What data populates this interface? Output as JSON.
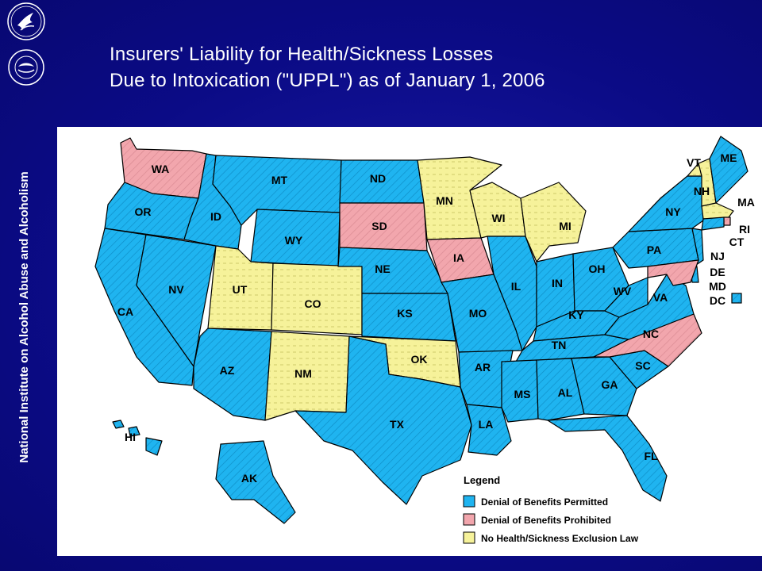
{
  "title": {
    "line1": "Insurers' Liability for Health/Sickness Losses",
    "line2": "Due to Intoxication (\"UPPL\") as of January 1, 2006"
  },
  "sidebar": {
    "org_name": "National Institute on Alcohol Abuse and Alcoholism",
    "logo_top": "hhs-eagle-logo",
    "logo_bottom": "nih-seal-logo"
  },
  "colors": {
    "permitted": "#1fb4f0",
    "prohibited": "#f2a6ad",
    "no_law": "#f6f29a",
    "background": "#0b0b86"
  },
  "legend": {
    "title": "Legend",
    "items": [
      {
        "label": "Denial of Benefits Permitted",
        "status": "permitted"
      },
      {
        "label": "Denial of Benefits Prohibited",
        "status": "prohibited"
      },
      {
        "label": "No Health/Sickness Exclusion Law",
        "status": "no_law"
      }
    ]
  },
  "states": [
    {
      "code": "WA",
      "status": "prohibited"
    },
    {
      "code": "OR",
      "status": "permitted"
    },
    {
      "code": "CA",
      "status": "permitted"
    },
    {
      "code": "NV",
      "status": "permitted"
    },
    {
      "code": "ID",
      "status": "permitted"
    },
    {
      "code": "MT",
      "status": "permitted"
    },
    {
      "code": "WY",
      "status": "permitted"
    },
    {
      "code": "UT",
      "status": "no_law"
    },
    {
      "code": "CO",
      "status": "no_law"
    },
    {
      "code": "AZ",
      "status": "permitted"
    },
    {
      "code": "NM",
      "status": "no_law"
    },
    {
      "code": "ND",
      "status": "permitted"
    },
    {
      "code": "SD",
      "status": "prohibited"
    },
    {
      "code": "NE",
      "status": "permitted"
    },
    {
      "code": "KS",
      "status": "permitted"
    },
    {
      "code": "OK",
      "status": "no_law"
    },
    {
      "code": "TX",
      "status": "permitted"
    },
    {
      "code": "MN",
      "status": "no_law"
    },
    {
      "code": "IA",
      "status": "prohibited"
    },
    {
      "code": "MO",
      "status": "permitted"
    },
    {
      "code": "AR",
      "status": "permitted"
    },
    {
      "code": "LA",
      "status": "permitted"
    },
    {
      "code": "WI",
      "status": "no_law"
    },
    {
      "code": "IL",
      "status": "permitted"
    },
    {
      "code": "MI",
      "status": "no_law"
    },
    {
      "code": "IN",
      "status": "permitted"
    },
    {
      "code": "OH",
      "status": "permitted"
    },
    {
      "code": "KY",
      "status": "permitted"
    },
    {
      "code": "TN",
      "status": "permitted"
    },
    {
      "code": "MS",
      "status": "permitted"
    },
    {
      "code": "AL",
      "status": "permitted"
    },
    {
      "code": "GA",
      "status": "permitted"
    },
    {
      "code": "FL",
      "status": "permitted"
    },
    {
      "code": "SC",
      "status": "permitted"
    },
    {
      "code": "NC",
      "status": "prohibited"
    },
    {
      "code": "VA",
      "status": "permitted"
    },
    {
      "code": "WV",
      "status": "permitted"
    },
    {
      "code": "PA",
      "status": "permitted"
    },
    {
      "code": "NY",
      "status": "permitted"
    },
    {
      "code": "VT",
      "status": "no_law"
    },
    {
      "code": "NH",
      "status": "no_law"
    },
    {
      "code": "ME",
      "status": "permitted"
    },
    {
      "code": "MA",
      "status": "no_law"
    },
    {
      "code": "RI",
      "status": "prohibited"
    },
    {
      "code": "CT",
      "status": "permitted"
    },
    {
      "code": "NJ",
      "status": "permitted"
    },
    {
      "code": "DE",
      "status": "permitted"
    },
    {
      "code": "MD",
      "status": "prohibited"
    },
    {
      "code": "DC",
      "status": "permitted"
    },
    {
      "code": "AK",
      "status": "permitted"
    },
    {
      "code": "HI",
      "status": "permitted"
    }
  ]
}
